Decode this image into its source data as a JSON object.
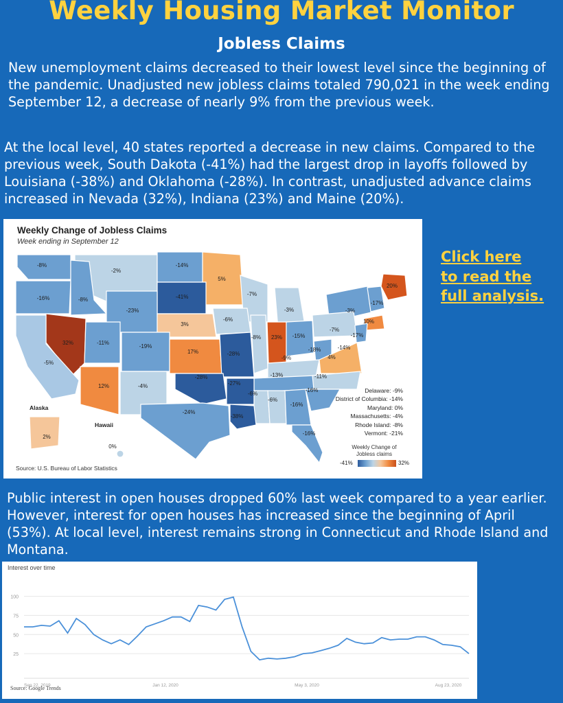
{
  "header": {
    "title": "Weekly Housing Market Monitor",
    "subtitle": "Jobless Claims"
  },
  "paragraphs": {
    "p1": "New unemployment claims decreased to their lowest level since the beginning of the pandemic. Unadjusted new jobless claims totaled 790,021 in the week ending September 12, a decrease of nearly 9% from the previous week.",
    "p2": "At the local level, 40 states reported a decrease in new claims. Compared to the previous week, South Dakota (-41%) had the largest drop in layoffs followed by Louisiana (-38%) and Oklahoma (-28%). In contrast, unadjusted advance claims increased in Nevada (32%), Indiana (23%) and Maine (20%).",
    "p3": "Public interest in open houses dropped 60% last week compared to a year earlier. However, interest for open houses has increased since the beginning of April (53%). At local level, interest remains strong in Connecticut and Rhode Island and Montana."
  },
  "cta": {
    "line1": "Click here",
    "line2": "to read the",
    "line3": "full analysis."
  },
  "map": {
    "title": "Weekly Change of Jobless Claims",
    "subtitle": "Week ending in September 12",
    "source": "Source: U.S. Bureau of Labor Statistics",
    "alaska_label": "Alaska",
    "hawaii_label": "Hawaii",
    "small_states": [
      "Delaware: -9%",
      "District of Columbia: -14%",
      "Maryland: 0%",
      "Massachusetts: -4%",
      "Rhode Island: -8%",
      "Vermont: -21%"
    ],
    "legend_title": "Weekly Change of Jobless claims",
    "legend_min": "-41%",
    "legend_max": "32%",
    "colors": {
      "strong_decrease": "#2c5b9c",
      "decrease": "#6c9fd0",
      "slight_decrease": "#bcd4e6",
      "slight_increase": "#f5c69a",
      "increase": "#f08a40",
      "strong_increase": "#a3371a"
    },
    "state_values": [
      "-8%",
      "-2%",
      "-14%",
      "5%",
      "20%",
      "-16%",
      "-8%",
      "-41%",
      "-7%",
      "-17%",
      "-3%",
      "-23%",
      "3%",
      "-6%",
      "-3%",
      "10%",
      "32%",
      "-11%",
      "-19%",
      "17%",
      "-28%",
      "-8%",
      "23%",
      "-15%",
      "-7%",
      "-17%",
      "-5%",
      "-18%",
      "-14%",
      "4%",
      "-9%",
      "-28%",
      "-13%",
      "-11%",
      "12%",
      "-4%",
      "-27%",
      "-6%",
      "-6%",
      "-16%",
      "-16%",
      "-24%",
      "-38%",
      "-16%",
      "2%",
      "0%"
    ]
  },
  "trend": {
    "title": "Interest over time",
    "source": "Source: Google Trends",
    "chart_data": {
      "type": "line",
      "title": "Interest over time",
      "x_ticks": [
        "Sep 22, 2019",
        "Jan 12, 2020",
        "May 3, 2020",
        "Aug 23, 2020"
      ],
      "y_ticks": [
        "25",
        "50",
        "75",
        "100"
      ],
      "ylim": [
        0,
        105
      ],
      "grid": true,
      "series": [
        {
          "color": "#4a90d9",
          "values": [
            60,
            60,
            62,
            61,
            68,
            52,
            71,
            63,
            50,
            43,
            38,
            43,
            37,
            48,
            60,
            64,
            68,
            73,
            73,
            67,
            88,
            86,
            82,
            96,
            99,
            60,
            28,
            17,
            19,
            18,
            19,
            21,
            25,
            26,
            29,
            32,
            36,
            45,
            40,
            38,
            39,
            46,
            43,
            44,
            44,
            47,
            47,
            43,
            37,
            36,
            34,
            25
          ]
        }
      ]
    }
  }
}
